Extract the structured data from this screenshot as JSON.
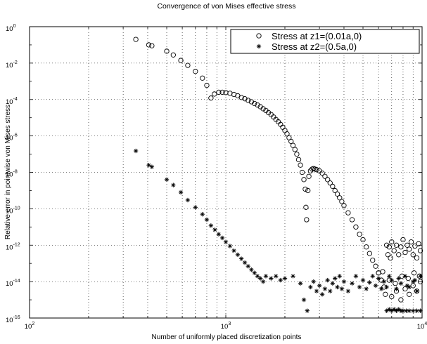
{
  "chart_data": {
    "type": "scatter",
    "title": "Convergence of von Mises effective stress",
    "xlabel": "Number of uniformly placed discretization points",
    "ylabel": "Relative error in pointwise von Mises stress",
    "xscale": "log",
    "yscale": "log",
    "xlim": [
      100,
      10000
    ],
    "ylim": [
      1e-16,
      1
    ],
    "grid": true,
    "legend_position": "top-right",
    "x_tick_labels": [
      {
        "base": "10",
        "exp": "2"
      },
      {
        "base": "10",
        "exp": "3"
      },
      {
        "base": "10",
        "exp": "4"
      }
    ],
    "y_tick_labels": [
      {
        "base": "10",
        "exp": "0"
      },
      {
        "base": "10",
        "exp": "-2"
      },
      {
        "base": "10",
        "exp": "-4"
      },
      {
        "base": "10",
        "exp": "-6"
      },
      {
        "base": "10",
        "exp": "-8"
      },
      {
        "base": "10",
        "exp": "-10"
      },
      {
        "base": "10",
        "exp": "-12"
      },
      {
        "base": "10",
        "exp": "-14"
      },
      {
        "base": "10",
        "exp": "-16"
      }
    ],
    "series": [
      {
        "name": "Stress at z1=(0.01a,0)",
        "marker": "circle",
        "points": [
          [
            348,
            0.2
          ],
          [
            405,
            0.1
          ],
          [
            420,
            0.09
          ],
          [
            500,
            0.045
          ],
          [
            540,
            0.028
          ],
          [
            590,
            0.014
          ],
          [
            640,
            0.0075
          ],
          [
            700,
            0.0035
          ],
          [
            760,
            0.0015
          ],
          [
            800,
            0.0006
          ],
          [
            840,
            0.00012
          ],
          [
            875,
            0.0002
          ],
          [
            920,
            0.00025
          ],
          [
            960,
            0.00025
          ],
          [
            1000,
            0.00024
          ],
          [
            1050,
            0.00022
          ],
          [
            1100,
            0.00019
          ],
          [
            1150,
            0.00016
          ],
          [
            1200,
            0.00013
          ],
          [
            1250,
            0.00011
          ],
          [
            1300,
            9e-05
          ],
          [
            1350,
            7.5e-05
          ],
          [
            1400,
            6e-05
          ],
          [
            1450,
            5e-05
          ],
          [
            1500,
            4e-05
          ],
          [
            1550,
            3.1e-05
          ],
          [
            1600,
            2.5e-05
          ],
          [
            1650,
            1.9e-05
          ],
          [
            1700,
            1.5e-05
          ],
          [
            1750,
            1.1e-05
          ],
          [
            1800,
            8e-06
          ],
          [
            1850,
            6e-06
          ],
          [
            1900,
            4.3e-06
          ],
          [
            1950,
            3e-06
          ],
          [
            2000,
            2e-06
          ],
          [
            2050,
            1.3e-06
          ],
          [
            2100,
            8e-07
          ],
          [
            2150,
            5e-07
          ],
          [
            2200,
            3e-07
          ],
          [
            2250,
            1.8e-07
          ],
          [
            2300,
            1e-07
          ],
          [
            2350,
            5e-08
          ],
          [
            2400,
            2.5e-08
          ],
          [
            2450,
            1e-08
          ],
          [
            2500,
            4e-09
          ],
          [
            2540,
            1.2e-09
          ],
          [
            2560,
            1.2e-10
          ],
          [
            2580,
            2.5e-11
          ],
          [
            2620,
            1e-09
          ],
          [
            2650,
            6e-09
          ],
          [
            2700,
            1.2e-08
          ],
          [
            2750,
            1.5e-08
          ],
          [
            2800,
            1.6e-08
          ],
          [
            2850,
            1.5e-08
          ],
          [
            2900,
            1.4e-08
          ],
          [
            3000,
            1.2e-08
          ],
          [
            3100,
            9e-09
          ],
          [
            3200,
            6e-09
          ],
          [
            3300,
            4e-09
          ],
          [
            3400,
            2.6e-09
          ],
          [
            3500,
            1.7e-09
          ],
          [
            3600,
            1e-09
          ],
          [
            3700,
            6.5e-10
          ],
          [
            3800,
            4e-10
          ],
          [
            3900,
            2.5e-10
          ],
          [
            4000,
            1.5e-10
          ],
          [
            4200,
            6e-11
          ],
          [
            4400,
            2.5e-11
          ],
          [
            4600,
            1e-11
          ],
          [
            4800,
            4e-12
          ],
          [
            5000,
            2e-12
          ],
          [
            5200,
            8e-13
          ],
          [
            5400,
            3.5e-13
          ],
          [
            5600,
            1.5e-13
          ],
          [
            5800,
            7e-14
          ],
          [
            6000,
            3e-14
          ],
          [
            6200,
            1.2e-14
          ],
          [
            6400,
            5e-15
          ],
          [
            6500,
            2e-15
          ],
          [
            6600,
            1e-12
          ],
          [
            6700,
            3e-13
          ],
          [
            6800,
            8e-13
          ],
          [
            6900,
            2e-13
          ],
          [
            7000,
            1.5e-12
          ],
          [
            7200,
            5e-13
          ],
          [
            7400,
            1e-12
          ],
          [
            7600,
            3e-13
          ],
          [
            7800,
            8e-13
          ],
          [
            8000,
            2e-12
          ],
          [
            8200,
            4e-13
          ],
          [
            8400,
            1e-12
          ],
          [
            8600,
            6e-13
          ],
          [
            8800,
            1.5e-12
          ],
          [
            9000,
            3e-13
          ],
          [
            9200,
            9e-13
          ],
          [
            9400,
            2e-13
          ],
          [
            9600,
            1.2e-12
          ],
          [
            9800,
            5e-13
          ],
          [
            7000,
            1.5e-15
          ],
          [
            7400,
            3e-15
          ],
          [
            7800,
            1e-15
          ],
          [
            8200,
            4e-15
          ],
          [
            8600,
            2e-15
          ],
          [
            9000,
            6e-15
          ],
          [
            9400,
            3e-15
          ],
          [
            9800,
            1e-14
          ],
          [
            6000,
            3e-14
          ],
          [
            6300,
            3.5e-14
          ],
          [
            6800,
            1.2e-14
          ],
          [
            7300,
            8e-15
          ],
          [
            7900,
            2e-14
          ],
          [
            8500,
            1.5e-14
          ],
          [
            9100,
            3e-14
          ],
          [
            9700,
            2e-14
          ]
        ]
      },
      {
        "name": "Stress at z2=(0.5a,0)",
        "marker": "asterisk",
        "points": [
          [
            348,
            1.5e-07
          ],
          [
            405,
            2.5e-08
          ],
          [
            420,
            2e-08
          ],
          [
            500,
            4e-09
          ],
          [
            540,
            2e-09
          ],
          [
            590,
            8e-10
          ],
          [
            640,
            3e-10
          ],
          [
            700,
            1.2e-10
          ],
          [
            760,
            5e-11
          ],
          [
            800,
            2.5e-11
          ],
          [
            840,
            1.2e-11
          ],
          [
            880,
            7e-12
          ],
          [
            920,
            4e-12
          ],
          [
            960,
            2.5e-12
          ],
          [
            1000,
            1.5e-12
          ],
          [
            1050,
            9e-13
          ],
          [
            1100,
            5e-13
          ],
          [
            1150,
            3e-13
          ],
          [
            1200,
            1.8e-13
          ],
          [
            1250,
            1.1e-13
          ],
          [
            1300,
            7e-14
          ],
          [
            1350,
            4.5e-14
          ],
          [
            1400,
            3e-14
          ],
          [
            1450,
            2e-14
          ],
          [
            1500,
            1.5e-14
          ],
          [
            1550,
            1e-14
          ],
          [
            1600,
            2e-14
          ],
          [
            1700,
            1.5e-14
          ],
          [
            1800,
            2e-14
          ],
          [
            1900,
            1.2e-14
          ],
          [
            2000,
            1.5e-14
          ],
          [
            2200,
            2e-14
          ],
          [
            2400,
            8e-15
          ],
          [
            2500,
            1e-15
          ],
          [
            2600,
            2.5e-16
          ],
          [
            2700,
            5e-15
          ],
          [
            2800,
            1e-14
          ],
          [
            2900,
            3e-15
          ],
          [
            3000,
            6e-15
          ],
          [
            3100,
            2e-15
          ],
          [
            3200,
            4e-15
          ],
          [
            3300,
            1.2e-14
          ],
          [
            3400,
            3e-15
          ],
          [
            3500,
            8e-15
          ],
          [
            3600,
            1.5e-14
          ],
          [
            3700,
            5e-15
          ],
          [
            3800,
            2e-14
          ],
          [
            3900,
            4e-15
          ],
          [
            4000,
            1e-14
          ],
          [
            4200,
            3e-15
          ],
          [
            4400,
            8e-15
          ],
          [
            4600,
            2e-14
          ],
          [
            4800,
            5e-15
          ],
          [
            5000,
            1.2e-14
          ],
          [
            5200,
            4e-15
          ],
          [
            5400,
            9e-15
          ],
          [
            5600,
            2e-14
          ],
          [
            5800,
            6e-15
          ],
          [
            6000,
            1.5e-14
          ],
          [
            6200,
            4e-15
          ],
          [
            6400,
            1e-14
          ],
          [
            6600,
            2.5e-16
          ],
          [
            6800,
            3e-16
          ],
          [
            7000,
            2.5e-16
          ],
          [
            7200,
            3e-16
          ],
          [
            7400,
            2.5e-16
          ],
          [
            7600,
            3e-16
          ],
          [
            7800,
            2.5e-16
          ],
          [
            8000,
            2.5e-16
          ],
          [
            8300,
            2.5e-16
          ],
          [
            8600,
            2.5e-16
          ],
          [
            9000,
            2.5e-16
          ],
          [
            9400,
            2.5e-16
          ],
          [
            9800,
            2.5e-16
          ],
          [
            6600,
            5e-15
          ],
          [
            7000,
            1.2e-14
          ],
          [
            7400,
            4e-15
          ],
          [
            7800,
            8e-15
          ],
          [
            8200,
            2e-14
          ],
          [
            8600,
            5e-15
          ],
          [
            9000,
            1e-14
          ],
          [
            9400,
            3e-15
          ],
          [
            9800,
            2e-14
          ],
          [
            6800,
            2e-14
          ],
          [
            7600,
            1.5e-14
          ],
          [
            8400,
            6e-15
          ],
          [
            9200,
            1.2e-14
          ]
        ]
      }
    ]
  }
}
